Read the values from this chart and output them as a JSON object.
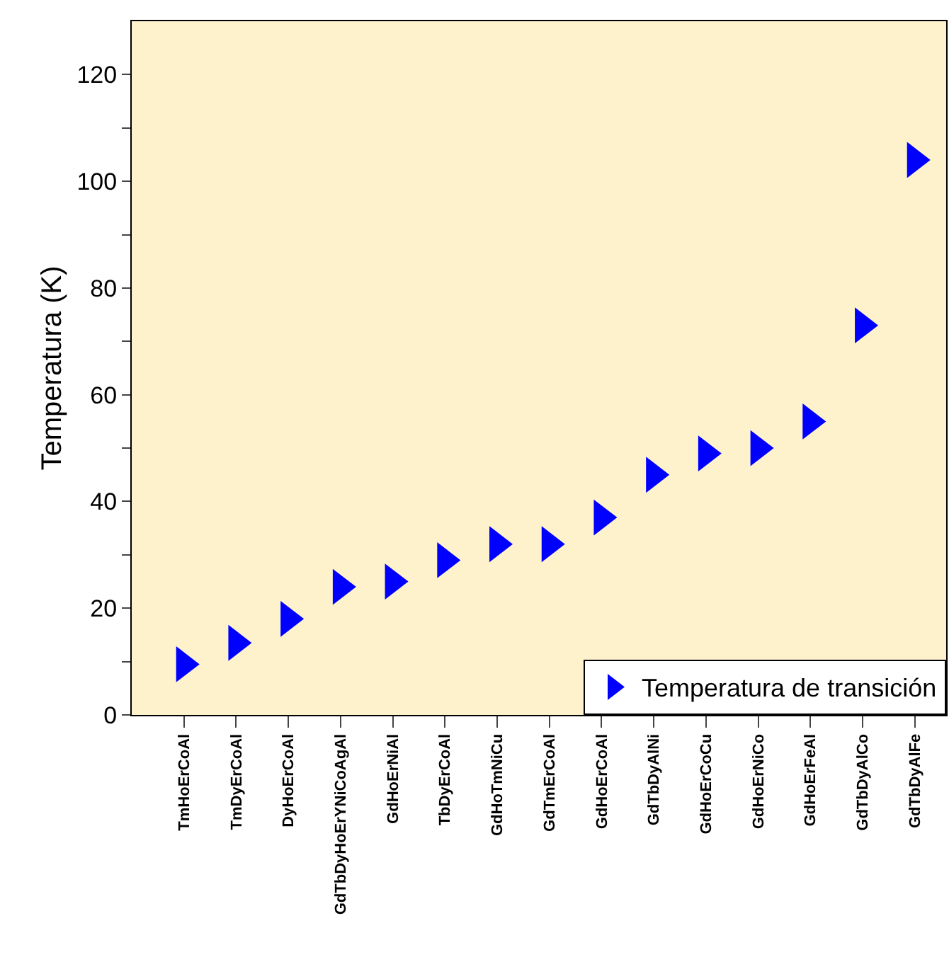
{
  "chart_data": {
    "type": "scatter",
    "ylabel": "Temperatura (K)",
    "categories": [
      "TmHoErCoAl",
      "TmDyErCoAl",
      "DyHoErCoAl",
      "GdTbDyHoErYNiCoAgAl",
      "GdHoErNiAl",
      "TbDyErCoAl",
      "GdHoTmNiCu",
      "GdTmErCoAl",
      "GdHoErCoAl",
      "GdTbDyAlNi",
      "GdHoErCoCu",
      "GdHoErNiCo",
      "GdHoErFeAl",
      "GdTbDyAlCo",
      "GdTbDyAlFe"
    ],
    "series": [
      {
        "name": "Temperatura de transición",
        "color": "#0000ff",
        "values": [
          9.5,
          13.5,
          18,
          24,
          25,
          29,
          32,
          32,
          37,
          45,
          49,
          50,
          55,
          73,
          104
        ]
      }
    ],
    "ylim": [
      0,
      130
    ],
    "yticks": [
      0,
      {
        "value": 10,
        "label": null
      },
      20,
      {
        "value": 30,
        "label": null
      },
      40,
      {
        "value": 50,
        "label": null
      },
      60,
      {
        "value": 70,
        "label": null
      },
      80,
      {
        "value": 90,
        "label": null
      },
      100,
      {
        "value": 110,
        "label": null
      },
      120
    ],
    "marker": "triangle",
    "grid": false,
    "legend": "bottom right"
  }
}
